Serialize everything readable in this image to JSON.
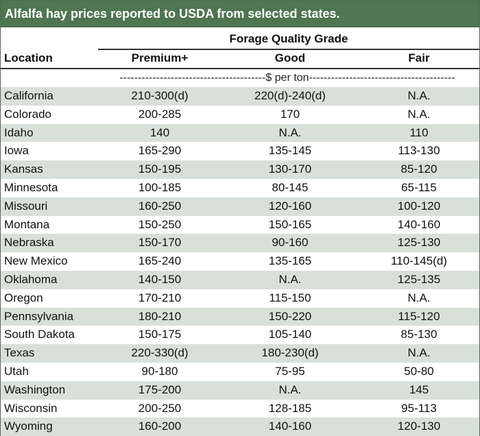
{
  "title": "Alfalfa hay prices reported to USDA from selected states.",
  "group_header": "Forage Quality Grade",
  "columns": [
    "Location",
    "Premium+",
    "Good",
    "Fair"
  ],
  "unit_label": "----------------------------------------$ per ton----------------------------------------",
  "rows": [
    {
      "location": "California",
      "premium": "210-300(d)",
      "good": "220(d)-240(d)",
      "fair": "N.A."
    },
    {
      "location": "Colorado",
      "premium": "200-285",
      "good": "170",
      "fair": "N.A."
    },
    {
      "location": "Idaho",
      "premium": "140",
      "good": "N.A.",
      "fair": "110"
    },
    {
      "location": "Iowa",
      "premium": "165-290",
      "good": "135-145",
      "fair": "113-130"
    },
    {
      "location": "Kansas",
      "premium": "150-195",
      "good": "130-170",
      "fair": "85-120"
    },
    {
      "location": "Minnesota",
      "premium": "100-185",
      "good": "80-145",
      "fair": "65-115"
    },
    {
      "location": "Missouri",
      "premium": "160-250",
      "good": "120-160",
      "fair": "100-120"
    },
    {
      "location": "Montana",
      "premium": "150-250",
      "good": "150-165",
      "fair": "140-160"
    },
    {
      "location": "Nebraska",
      "premium": "150-170",
      "good": "90-160",
      "fair": "125-130"
    },
    {
      "location": "New Mexico",
      "premium": "165-240",
      "good": "135-165",
      "fair": "110-145(d)"
    },
    {
      "location": "Oklahoma",
      "premium": "140-150",
      "good": "N.A.",
      "fair": "125-135"
    },
    {
      "location": "Oregon",
      "premium": "170-210",
      "good": "115-150",
      "fair": "N.A."
    },
    {
      "location": "Pennsylvania",
      "premium": "180-210",
      "good": "150-220",
      "fair": "115-120"
    },
    {
      "location": "South Dakota",
      "premium": "150-175",
      "good": "105-140",
      "fair": "85-130"
    },
    {
      "location": "Texas",
      "premium": "220-330(d)",
      "good": "180-230(d)",
      "fair": "N.A."
    },
    {
      "location": "Utah",
      "premium": "90-180",
      "good": "75-95",
      "fair": "50-80"
    },
    {
      "location": "Washington",
      "premium": "175-200",
      "good": "N.A.",
      "fair": "145"
    },
    {
      "location": "Wisconsin",
      "premium": "200-250",
      "good": "128-185",
      "fair": "95-113"
    },
    {
      "location": "Wyoming",
      "premium": "160-200",
      "good": "140-160",
      "fair": "120-130"
    }
  ],
  "colors": {
    "title_bg": "#4f7551",
    "shade": "#d9e0da"
  }
}
